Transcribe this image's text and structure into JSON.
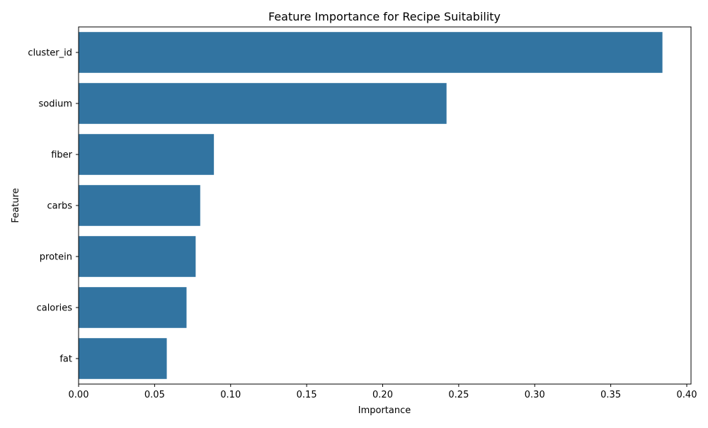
{
  "chart_data": {
    "type": "bar",
    "orientation": "horizontal",
    "title": "Feature Importance for Recipe Suitability",
    "xlabel": "Importance",
    "ylabel": "Feature",
    "categories": [
      "cluster_id",
      "sodium",
      "fiber",
      "carbs",
      "protein",
      "calories",
      "fat"
    ],
    "values": [
      0.384,
      0.242,
      0.089,
      0.08,
      0.077,
      0.071,
      0.058
    ],
    "xlim": [
      0,
      0.4
    ],
    "xticks": [
      0.0,
      0.05,
      0.1,
      0.15,
      0.2,
      0.25,
      0.3,
      0.35,
      0.4
    ],
    "xtick_labels": [
      "0.00",
      "0.05",
      "0.10",
      "0.15",
      "0.20",
      "0.25",
      "0.30",
      "0.35",
      "0.40"
    ],
    "grid": false,
    "bar_color": "#3274a1"
  }
}
